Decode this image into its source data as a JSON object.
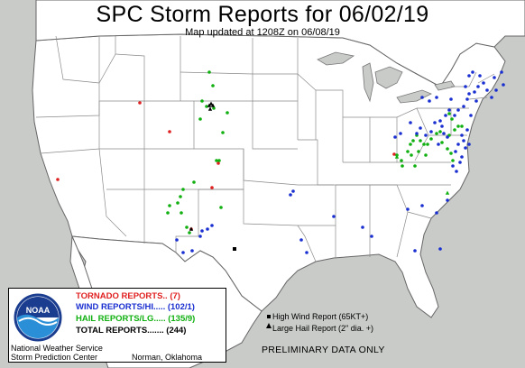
{
  "header": {
    "title": "SPC Storm Reports for 06/02/19",
    "subtitle": "Map updated at 1208Z on 06/08/19"
  },
  "legend": {
    "tornado": "TORNADO REPORTS.. (7)",
    "wind": "WIND REPORTS/HI..... (102/1)",
    "hail": "HAIL REPORTS/LG..... (135/9)",
    "total": "TOTAL REPORTS....... (244)",
    "logo_text": "NOAA",
    "agency_line1": "National Weather Service",
    "agency_line2": "Storm Prediction Center",
    "location": "Norman, Oklahoma"
  },
  "key": {
    "high_wind": "High Wind Report (65KT+)",
    "large_hail": "Large Hail Report (2\" dia. +)"
  },
  "footer": {
    "preliminary": "PRELIMINARY DATA ONLY"
  },
  "colors": {
    "tornado": "#e02020",
    "wind": "#1a2fd0",
    "hail": "#10b010",
    "land": "#ffffff",
    "water": "#c8cbc8"
  },
  "icons": {
    "high_wind_marker": "black-square",
    "large_hail_marker": "black-triangle"
  }
}
